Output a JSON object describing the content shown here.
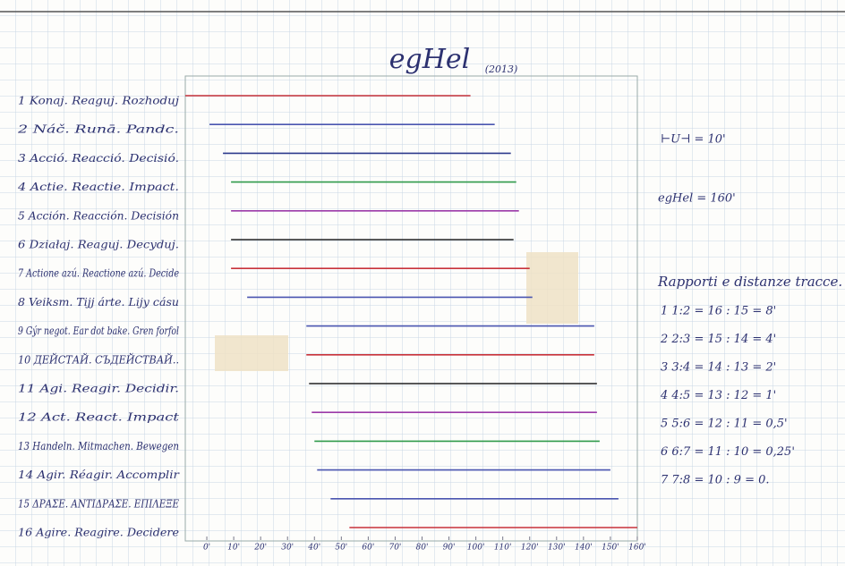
{
  "chart_data": {
    "type": "range",
    "title": "egHel",
    "subtitle": "(2013)",
    "categories": [
      "1 Konaj. Reaguj. Rozhoduj",
      "2 Náč. Runā. Pandc.",
      "3 Acció. Reacció. Decisió.",
      "4 Actie. Reactie. Impact.",
      "5 Acción. Reacción. Decisión",
      "6 Działaj. Reaguj. Decyduj.",
      "7 Actione azú. Reactione azú. Decide",
      "8 Veiksm. Tijj árte. Lijy cásu",
      "9 Gýr negot. Ear dot bake. Gren forfol",
      "10 ДЕЙСТАЙ. СЪДЕЙСТВАЙ..",
      "11 Agi. Reagir. Decidir.",
      "12 Act. React. Impact",
      "13 Handeln. Mitmachen. Bewegen",
      "14 Agir. Réagir. Accomplir",
      "15 ΔΡΑΣΕ. ΑΝΤΙΔΡΑΣΕ. ΕΠΙΛΕΞΕ",
      "16 Agire. Reagire. Decidere"
    ],
    "starts": [
      -8,
      1,
      6,
      9,
      9,
      9,
      9,
      15,
      37,
      37,
      38,
      39,
      40,
      41,
      46,
      53
    ],
    "ends": [
      98,
      107,
      113,
      115,
      116,
      114,
      120,
      121,
      144,
      144,
      145,
      145,
      146,
      150,
      153,
      160
    ],
    "colors": [
      "#c8323a",
      "#4a55b0",
      "#2d3a8c",
      "#2f9a4a",
      "#9b3aa8",
      "#222222",
      "#c8323a",
      "#4a55b0",
      "#4a55b0",
      "#c8323a",
      "#222222",
      "#9b3aa8",
      "#2f9a4a",
      "#4a55b0",
      "#4a55b0",
      "#c8323a"
    ],
    "xlim": [
      -8,
      168
    ],
    "xticks": [
      {
        "value": 0,
        "label": "0'"
      },
      {
        "value": 10,
        "label": "10'"
      },
      {
        "value": 20,
        "label": "20'"
      },
      {
        "value": 30,
        "label": "30'"
      },
      {
        "value": 40,
        "label": "40'"
      },
      {
        "value": 50,
        "label": "50'"
      },
      {
        "value": 60,
        "label": "60'"
      },
      {
        "value": 70,
        "label": "70'"
      },
      {
        "value": 80,
        "label": "80'"
      },
      {
        "value": 90,
        "label": "90'"
      },
      {
        "value": 100,
        "label": "100'"
      },
      {
        "value": 110,
        "label": "110'"
      },
      {
        "value": 120,
        "label": "120'"
      },
      {
        "value": 130,
        "label": "130'"
      },
      {
        "value": 140,
        "label": "140'"
      },
      {
        "value": 150,
        "label": "150'"
      },
      {
        "value": 160,
        "label": "160'"
      }
    ]
  },
  "notes": {
    "unit": "⊢U⊣ = 10'",
    "total": "egHel = 160'",
    "heading": "Rapporti e distanze tracce.",
    "ratios": [
      "1 1:2 = 16 : 15 = 8'",
      "2 2:3 = 15 : 14 = 4'",
      "3 3:4 = 14 : 13 = 2'",
      "4 4:5 = 13 : 12 = 1'",
      "5 5:6 = 12 : 11 = 0,5'",
      "6 6:7 = 11 : 10 = 0,25'",
      "7 7:8 = 10 : 9 = 0."
    ]
  }
}
